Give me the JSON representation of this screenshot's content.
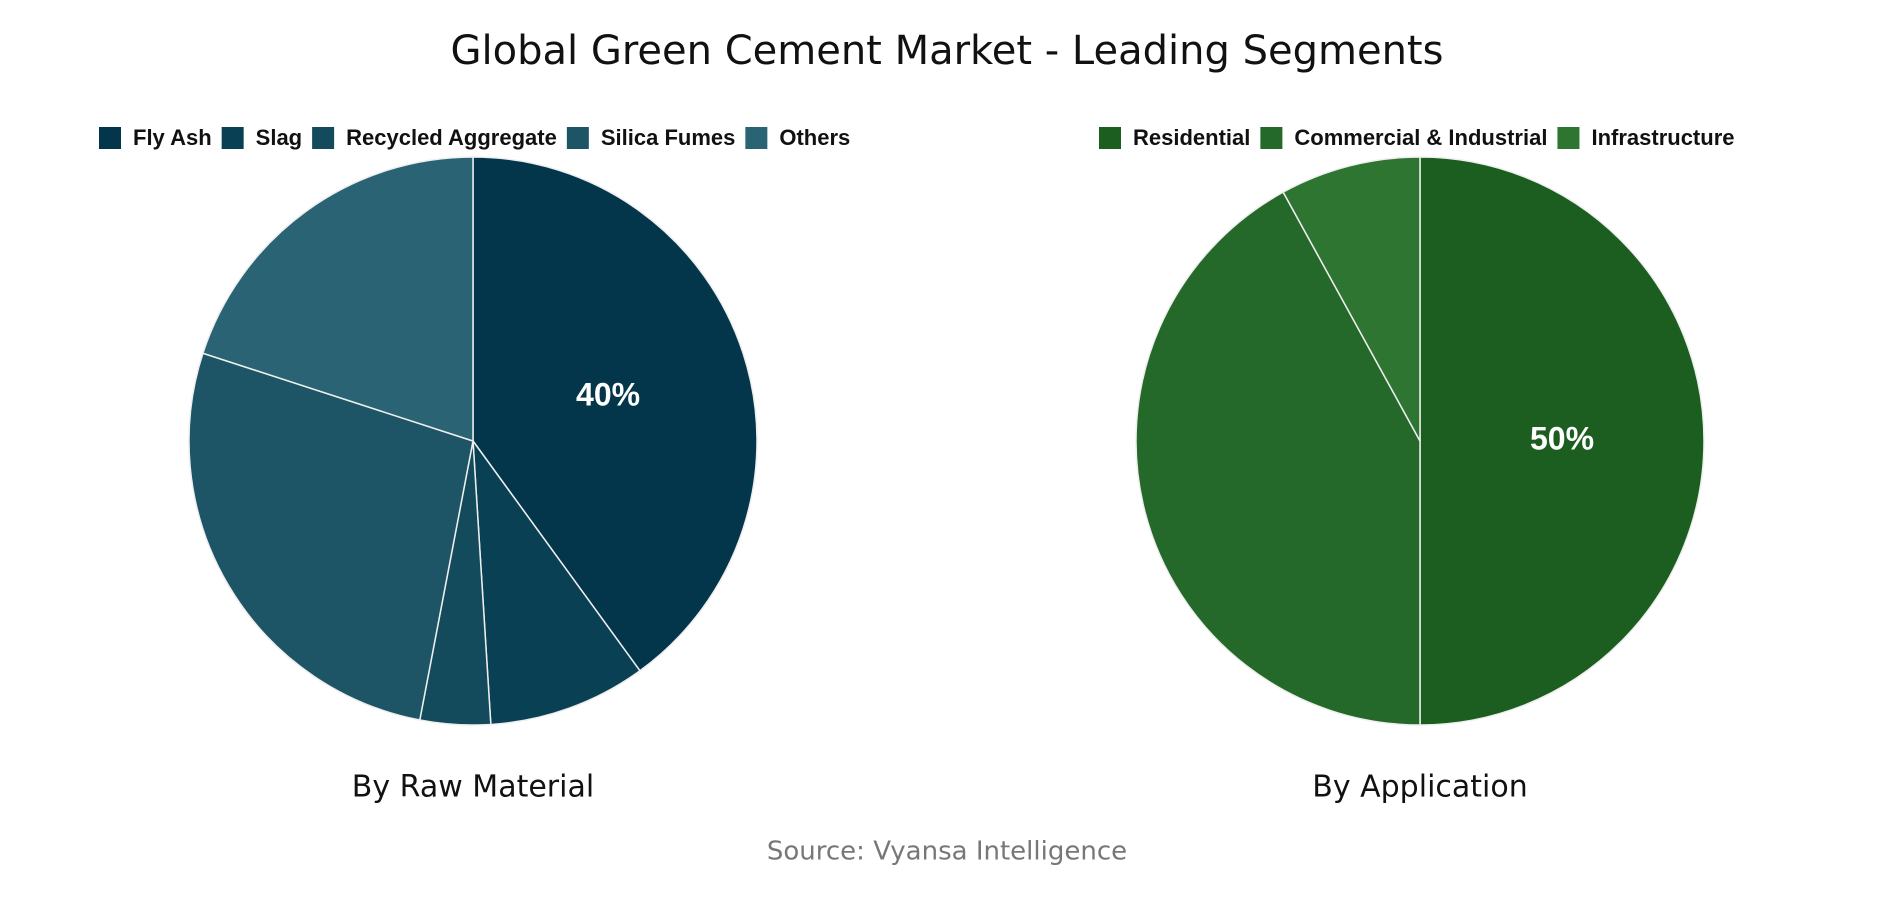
{
  "title": "Global Green Cement Market - Leading Segments",
  "source": "Source: Vyansa Intelligence",
  "chart_data": [
    {
      "type": "pie",
      "title": "By Raw Material",
      "categories": [
        "Fly Ash",
        "Slag",
        "Recycled Aggregate",
        "Silica Fumes",
        "Others"
      ],
      "values": [
        40,
        9,
        4,
        27,
        20
      ],
      "value_labels": [
        "40%",
        null,
        null,
        null,
        null
      ],
      "colors": [
        "#03364a",
        "#0a4054",
        "#134a5c",
        "#1d5566",
        "#2a6373"
      ]
    },
    {
      "type": "pie",
      "title": "By Application",
      "categories": [
        "Residential",
        "Commercial & Industrial",
        "Infrastructure"
      ],
      "values": [
        50,
        42,
        8
      ],
      "value_labels": [
        "50%",
        null,
        null
      ],
      "colors": [
        "#1c5e1f",
        "#25692a",
        "#2e7532"
      ]
    }
  ]
}
